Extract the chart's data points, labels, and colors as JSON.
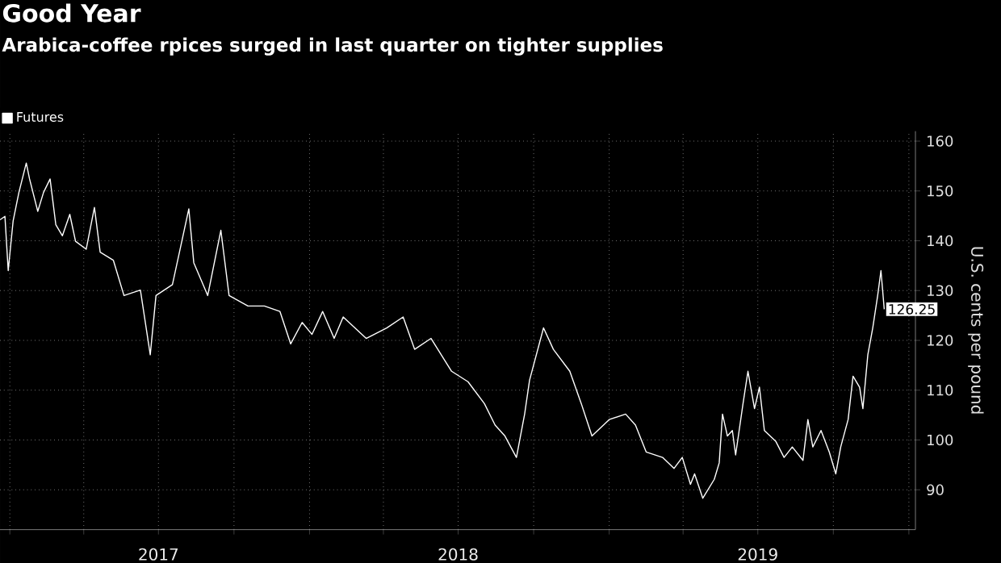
{
  "chart_data": {
    "type": "line",
    "title": "Good Year",
    "subtitle": "Arabica-coffee rpices surged in last quarter on tighter supplies",
    "ylabel": "U.S. cents per pound",
    "legend": "top left",
    "grid": true,
    "xlim": [
      "2016-12-20",
      "2020-01-09"
    ],
    "xticks": [
      {
        "value": "2017-01-01",
        "label": null
      },
      {
        "value": "2017-04-01",
        "label": null
      },
      {
        "value": "2017-07-01",
        "label": "2017"
      },
      {
        "value": "2017-10-01",
        "label": null
      },
      {
        "value": "2018-01-01",
        "label": null
      },
      {
        "value": "2018-04-01",
        "label": null
      },
      {
        "value": "2018-07-01",
        "label": "2018"
      },
      {
        "value": "2018-10-01",
        "label": null
      },
      {
        "value": "2019-01-01",
        "label": null
      },
      {
        "value": "2019-04-01",
        "label": null
      },
      {
        "value": "2019-07-01",
        "label": "2019"
      },
      {
        "value": "2019-10-01",
        "label": null
      },
      {
        "value": "2020-01-01",
        "label": null
      }
    ],
    "ylim": [
      82,
      162
    ],
    "yticks": [
      90,
      100,
      110,
      120,
      130,
      140,
      150,
      160
    ],
    "series": [
      {
        "name": "Futures",
        "color": "#ffffff",
        "x": [
          "2016-12-20",
          "2016-12-26",
          "2016-12-30",
          "2017-01-05",
          "2017-01-12",
          "2017-01-21",
          "2017-01-25",
          "2017-02-04",
          "2017-02-11",
          "2017-02-19",
          "2017-02-26",
          "2017-03-06",
          "2017-03-15",
          "2017-03-22",
          "2017-04-04",
          "2017-04-14",
          "2017-04-21",
          "2017-05-07",
          "2017-05-20",
          "2017-06-09",
          "2017-06-21",
          "2017-06-28",
          "2017-07-18",
          "2017-08-07",
          "2017-08-13",
          "2017-08-30",
          "2017-09-15",
          "2017-09-25",
          "2017-10-18",
          "2017-11-07",
          "2017-11-26",
          "2017-12-09",
          "2017-12-23",
          "2018-01-04",
          "2018-01-17",
          "2018-01-31",
          "2018-02-11",
          "2018-03-11",
          "2018-04-05",
          "2018-04-25",
          "2018-05-09",
          "2018-05-29",
          "2018-06-23",
          "2018-07-13",
          "2018-08-02",
          "2018-08-15",
          "2018-08-27",
          "2018-09-10",
          "2018-09-20",
          "2018-09-26",
          "2018-10-13",
          "2018-10-25",
          "2018-11-14",
          "2018-11-28",
          "2018-12-11",
          "2019-01-01",
          "2019-01-21",
          "2019-02-02",
          "2019-02-15",
          "2019-03-07",
          "2019-03-21",
          "2019-03-31",
          "2019-04-10",
          "2019-04-15",
          "2019-04-25",
          "2019-05-09",
          "2019-05-15",
          "2019-05-19",
          "2019-05-25",
          "2019-05-31",
          "2019-06-04",
          "2019-06-13",
          "2019-06-19",
          "2019-06-27",
          "2019-07-03",
          "2019-07-09",
          "2019-07-23",
          "2019-08-02",
          "2019-08-12",
          "2019-08-25",
          "2019-08-31",
          "2019-09-06",
          "2019-09-16",
          "2019-09-26",
          "2019-10-04",
          "2019-10-10",
          "2019-10-19",
          "2019-10-25",
          "2019-11-02",
          "2019-11-06",
          "2019-11-12",
          "2019-11-18",
          "2019-11-24",
          "2019-11-28",
          "2019-12-02"
        ],
        "values": [
          144.2,
          144.9,
          134,
          144,
          149.7,
          155.6,
          152.4,
          145.9,
          149.7,
          152.4,
          143.2,
          141,
          145.3,
          139.9,
          138.3,
          146.7,
          137.7,
          136.1,
          129,
          130.1,
          117.1,
          129,
          131.2,
          146.4,
          135.6,
          129,
          142.1,
          129,
          126.9,
          126.9,
          125.8,
          119.3,
          123.6,
          121.2,
          125.8,
          120.4,
          124.7,
          120.4,
          122.5,
          124.7,
          118.2,
          120.4,
          113.8,
          111.7,
          107.3,
          103,
          100.8,
          96.5,
          105.2,
          112,
          122.5,
          118.2,
          113.8,
          107.3,
          100.8,
          104.1,
          105.2,
          103,
          97.6,
          96.5,
          94.3,
          96.5,
          91.1,
          93.2,
          88.3,
          92.1,
          95.4,
          105.2,
          100.8,
          101.9,
          97,
          107.3,
          113.8,
          106.3,
          110.6,
          101.9,
          99.7,
          96.5,
          98.6,
          95.9,
          104.1,
          98.6,
          101.9,
          97.6,
          93.2,
          98.6,
          104.1,
          112.8,
          110.6,
          106.3,
          117.1,
          122.5,
          129,
          134,
          126.25
        ],
        "value_labels": [
          null,
          null,
          null,
          null,
          null,
          null,
          null,
          null,
          null,
          null,
          null,
          null,
          null,
          null,
          null,
          null,
          null,
          null,
          null,
          null,
          null,
          null,
          null,
          null,
          null,
          null,
          null,
          null,
          null,
          null,
          null,
          null,
          null,
          null,
          null,
          null,
          null,
          null,
          null,
          null,
          null,
          null,
          null,
          null,
          null,
          null,
          null,
          null,
          null,
          null,
          null,
          null,
          null,
          null,
          null,
          null,
          null,
          null,
          null,
          null,
          null,
          null,
          null,
          null,
          null,
          null,
          null,
          null,
          null,
          null,
          null,
          null,
          null,
          null,
          null,
          null,
          null,
          null,
          null,
          null,
          null,
          null,
          null,
          null,
          null,
          null,
          null,
          null,
          null,
          null,
          null,
          null,
          null,
          null,
          "126.25"
        ]
      }
    ]
  }
}
